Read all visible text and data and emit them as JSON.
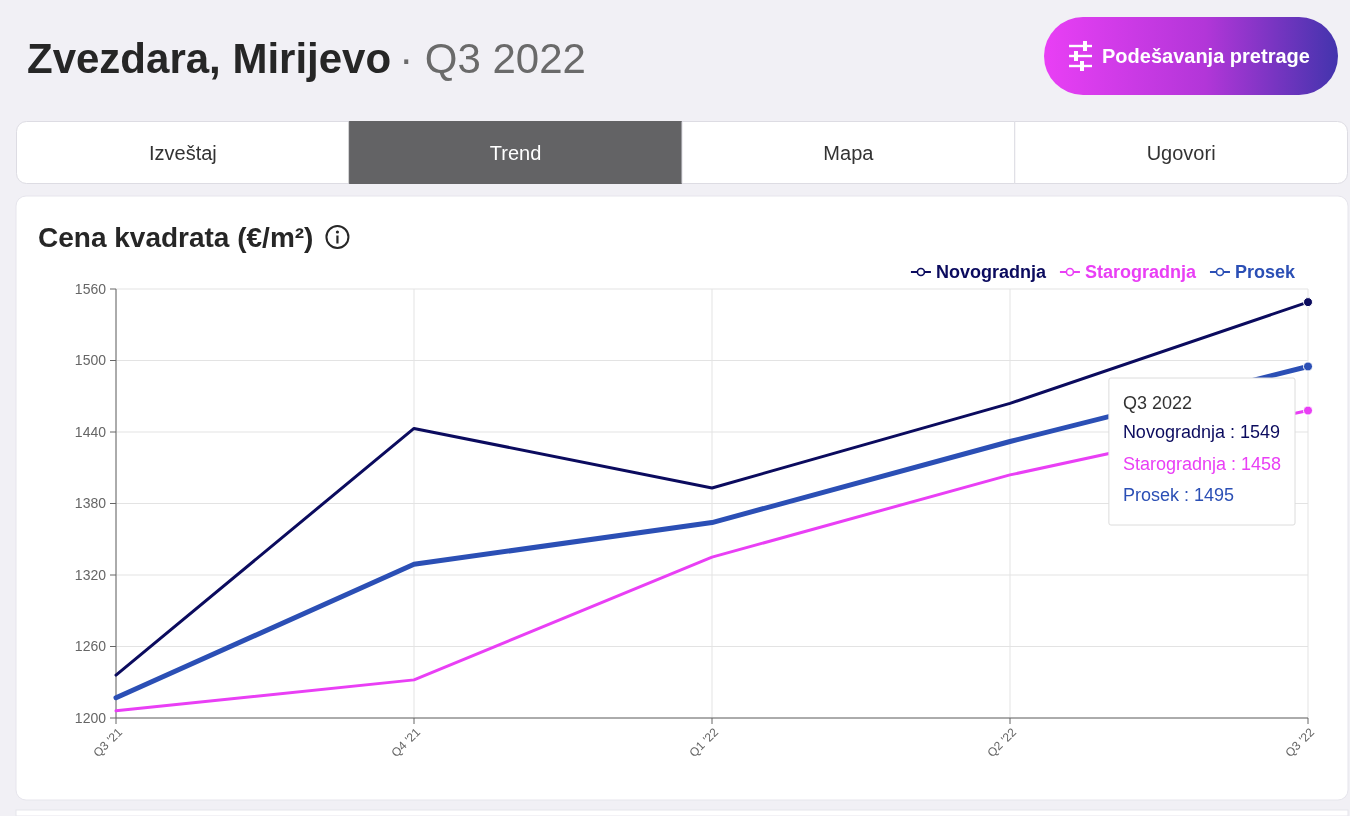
{
  "chart_data": {
    "type": "line",
    "title": "Cena kvadrata (€/m²)",
    "categories": [
      "Q3 '21",
      "Q4 '21",
      "Q1 '22",
      "Q2 '22",
      "Q3 '22"
    ],
    "series": [
      {
        "name": "Novogradnja",
        "color": "#0b0b5e",
        "values": [
          1236,
          1443,
          1393,
          1464,
          1549
        ]
      },
      {
        "name": "Starogradnja",
        "color": "#e93ff5",
        "values": [
          1206,
          1232,
          1335,
          1404,
          1458
        ]
      },
      {
        "name": "Prosek",
        "color": "#2b4fb5",
        "values": [
          1217,
          1329,
          1364,
          1432,
          1495
        ]
      }
    ],
    "ylim": [
      1200,
      1560
    ],
    "yticks": [
      1200,
      1260,
      1320,
      1380,
      1440,
      1500,
      1560
    ],
    "grid": true,
    "legend": "top right",
    "annotations": [
      "Zvezdara, Mirijevo",
      "· Q3 2022",
      "Podešavanja pretrage",
      "Izveštaj",
      "Trend",
      "Mapa",
      "Ugovori",
      "Q3 2022",
      "Novogradnja : 1549",
      "Starogradnja : 1458",
      "Prosek : 1495"
    ]
  }
}
